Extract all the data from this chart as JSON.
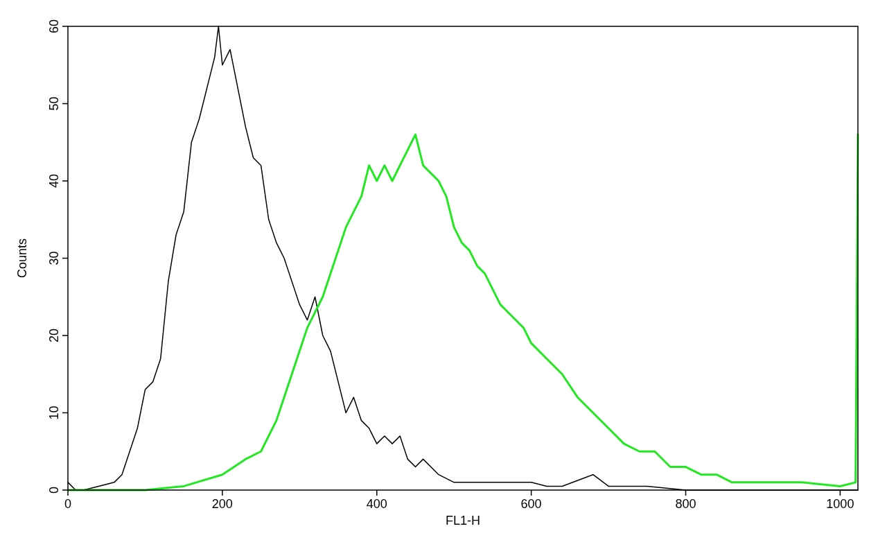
{
  "chart_data": {
    "type": "line",
    "xlabel": "FL1-H",
    "ylabel": "Counts",
    "xlim": [
      0,
      1023
    ],
    "ylim": [
      0,
      60
    ],
    "xticks": [
      0,
      200,
      400,
      600,
      800,
      1000
    ],
    "yticks": [
      0,
      10,
      20,
      30,
      40,
      50,
      60
    ],
    "grid": false,
    "marker": "none",
    "line_style": "solid",
    "series": [
      {
        "color": "#000000",
        "x": [
          0,
          10,
          20,
          40,
          60,
          70,
          80,
          90,
          100,
          110,
          120,
          130,
          140,
          150,
          160,
          170,
          180,
          190,
          195,
          200,
          210,
          220,
          230,
          240,
          250,
          260,
          270,
          280,
          290,
          300,
          310,
          320,
          330,
          340,
          350,
          360,
          370,
          380,
          390,
          400,
          410,
          420,
          430,
          440,
          450,
          460,
          470,
          480,
          500,
          520,
          540,
          560,
          580,
          600,
          620,
          640,
          680,
          700,
          750,
          800,
          900,
          1000,
          1023
        ],
        "values": [
          1,
          0,
          0,
          0.5,
          1,
          2,
          5,
          8,
          13,
          14,
          17,
          27,
          33,
          36,
          45,
          48,
          52,
          56,
          60,
          55,
          57,
          52,
          47,
          43,
          42,
          35,
          32,
          30,
          27,
          24,
          22,
          25,
          20,
          18,
          14,
          10,
          12,
          9,
          8,
          6,
          7,
          6,
          7,
          4,
          3,
          4,
          3,
          2,
          1,
          1,
          1,
          1,
          1,
          1,
          0.5,
          0.5,
          2,
          0.5,
          0.5,
          0,
          0,
          0,
          0
        ]
      },
      {
        "color": "#22e822",
        "x": [
          0,
          100,
          150,
          200,
          230,
          250,
          270,
          280,
          290,
          300,
          310,
          320,
          330,
          340,
          350,
          360,
          370,
          380,
          390,
          400,
          410,
          420,
          430,
          440,
          450,
          460,
          470,
          480,
          490,
          500,
          510,
          520,
          530,
          540,
          550,
          560,
          570,
          580,
          590,
          600,
          620,
          640,
          660,
          680,
          700,
          720,
          740,
          760,
          780,
          800,
          820,
          840,
          860,
          880,
          900,
          950,
          1000,
          1020,
          1023
        ],
        "values": [
          0,
          0,
          0.5,
          2,
          4,
          5,
          9,
          12,
          15,
          18,
          21,
          23,
          25,
          28,
          31,
          34,
          36,
          38,
          42,
          40,
          42,
          40,
          42,
          44,
          46,
          42,
          41,
          40,
          38,
          34,
          32,
          31,
          29,
          28,
          26,
          24,
          23,
          22,
          21,
          19,
          17,
          15,
          12,
          10,
          8,
          6,
          5,
          5,
          3,
          3,
          2,
          2,
          1,
          1,
          1,
          1,
          0.5,
          1,
          46
        ]
      }
    ]
  }
}
